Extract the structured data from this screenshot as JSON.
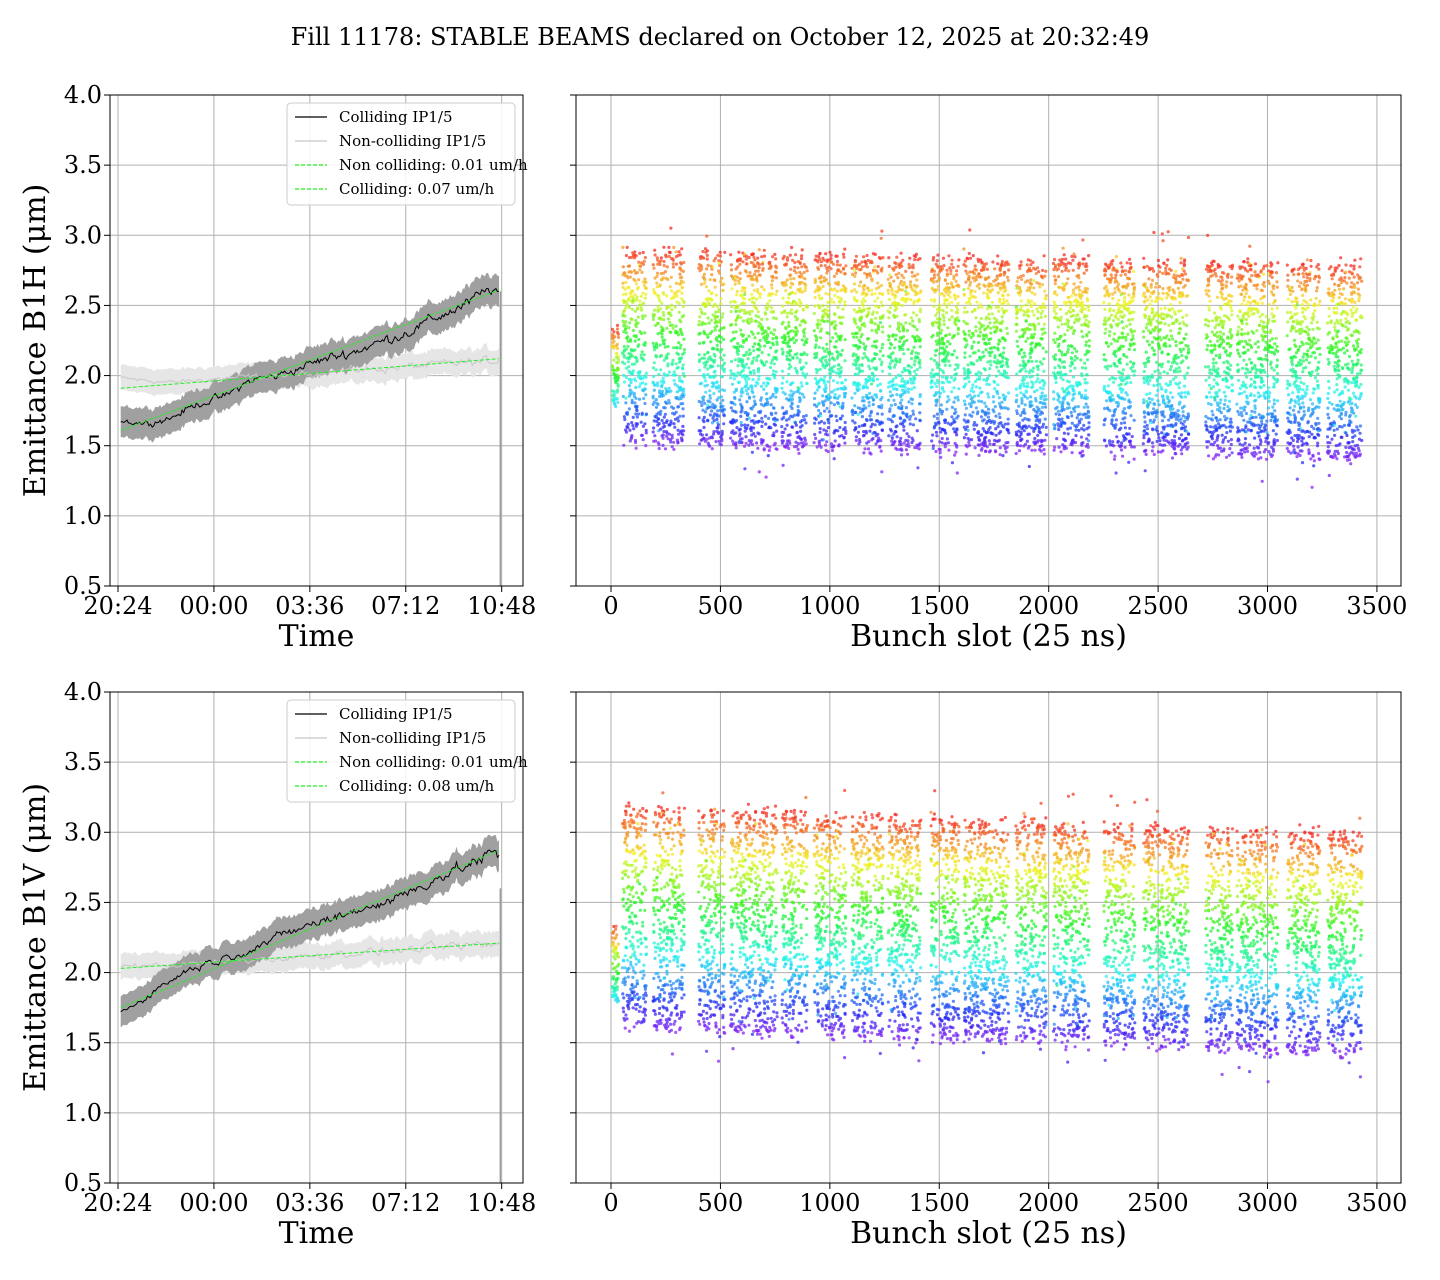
{
  "figure": {
    "title": "Fill 11178: STABLE BEAMS declared on October 12, 2025 at 20:32:49"
  },
  "colors": {
    "colliding": "#000000",
    "noncolliding": "#c8c8c8",
    "fit": "#22ee22",
    "band_colliding": "#a0a0a0",
    "band_noncolliding": "#e6e6e6",
    "grid": "#b0b0b0"
  },
  "chart_data": [
    {
      "type": "line",
      "panel": "B1H time evolution",
      "xlabel": "Time",
      "ylabel": "Emittance B1H (μm)",
      "ylim": [
        0.5,
        4.0
      ],
      "yticks": [
        "0.5",
        "1.0",
        "1.5",
        "2.0",
        "2.5",
        "3.0",
        "3.5",
        "4.0"
      ],
      "xlim_hours": [
        -0.3,
        15.2
      ],
      "xticks": [
        "20:24",
        "00:00",
        "03:36",
        "07:12",
        "10:48"
      ],
      "grid": true,
      "legend_position": "top-right",
      "legend": [
        "Colliding IP1/5",
        "Non-colliding IP1/5",
        "Non colliding: 0.01 um/h",
        "Colliding: 0.07 um/h"
      ],
      "series": [
        {
          "name": "Colliding IP1/5",
          "x_hours": [
            0.1,
            1,
            2,
            3,
            4,
            5,
            6,
            7,
            8,
            9,
            10,
            11,
            12,
            13,
            14,
            14.3
          ],
          "y": [
            1.68,
            1.66,
            1.7,
            1.8,
            1.85,
            1.97,
            2.0,
            2.07,
            2.13,
            2.18,
            2.25,
            2.32,
            2.42,
            2.5,
            2.62,
            2.6
          ]
        },
        {
          "name": "Non-colliding IP1/5",
          "x_hours": [
            0.1,
            2,
            4,
            6,
            8,
            10,
            12,
            14,
            14.3
          ],
          "y": [
            1.98,
            1.95,
            1.98,
            2.0,
            2.03,
            2.05,
            2.08,
            2.1,
            2.12
          ]
        },
        {
          "name": "Non colliding: 0.01 um/h",
          "x_hours": [
            0.1,
            14.3
          ],
          "y": [
            1.91,
            2.12
          ]
        },
        {
          "name": "Colliding: 0.07 um/h",
          "x_hours": [
            0.1,
            14.3
          ],
          "y": [
            1.61,
            2.61
          ]
        }
      ]
    },
    {
      "type": "scatter",
      "panel": "B1H bunch-by-bunch",
      "xlabel": "Bunch slot (25 ns)",
      "xlim": [
        -160,
        3610
      ],
      "ylim": [
        0.5,
        4.0
      ],
      "xticks": [
        "0",
        "500",
        "1000",
        "1500",
        "2000",
        "2500",
        "3000",
        "3500"
      ],
      "grid": true,
      "trains_start_slot": [
        52,
        192,
        400,
        546,
        780,
        928,
        1100,
        1266,
        1462,
        1612,
        1850,
        2022,
        2252,
        2432,
        2716,
        2860,
        3090,
        3274
      ],
      "trains_end_slot": [
        162,
        336,
        520,
        760,
        898,
        1074,
        1244,
        1416,
        1590,
        1818,
        1990,
        2186,
        2394,
        2640,
        2840,
        3048,
        3240,
        3432
      ],
      "y_range_at_start": [
        1.5,
        2.9
      ],
      "y_range_at_end": [
        1.4,
        2.8
      ]
    },
    {
      "type": "line",
      "panel": "B1V time evolution",
      "xlabel": "Time",
      "ylabel": "Emittance B1V (μm)",
      "ylim": [
        0.5,
        4.0
      ],
      "yticks": [
        "0.5",
        "1.0",
        "1.5",
        "2.0",
        "2.5",
        "3.0",
        "3.5",
        "4.0"
      ],
      "xlim_hours": [
        -0.3,
        15.2
      ],
      "xticks": [
        "20:24",
        "00:00",
        "03:36",
        "07:12",
        "10:48"
      ],
      "grid": true,
      "legend_position": "top-right",
      "legend": [
        "Colliding IP1/5",
        "Non-colliding IP1/5",
        "Non colliding: 0.01 um/h",
        "Colliding: 0.08 um/h"
      ],
      "series": [
        {
          "name": "Colliding IP1/5",
          "x_hours": [
            0.1,
            1,
            2,
            3,
            4,
            5,
            6,
            7,
            8,
            9,
            10,
            11,
            12,
            13,
            14,
            14.3
          ],
          "y": [
            1.72,
            1.82,
            1.95,
            2.05,
            2.1,
            2.17,
            2.25,
            2.33,
            2.38,
            2.45,
            2.5,
            2.58,
            2.68,
            2.75,
            2.85,
            2.82
          ]
        },
        {
          "name": "Non-colliding IP1/5",
          "x_hours": [
            0.1,
            2,
            4,
            6,
            8,
            10,
            12,
            14,
            14.3
          ],
          "y": [
            2.05,
            2.05,
            2.08,
            2.1,
            2.13,
            2.15,
            2.18,
            2.2,
            2.2
          ]
        },
        {
          "name": "Non colliding: 0.01 um/h",
          "x_hours": [
            0.1,
            14.3
          ],
          "y": [
            2.03,
            2.21
          ]
        },
        {
          "name": "Colliding: 0.08 um/h",
          "x_hours": [
            0.1,
            14.3
          ],
          "y": [
            1.75,
            2.87
          ]
        }
      ]
    },
    {
      "type": "scatter",
      "panel": "B1V bunch-by-bunch",
      "xlabel": "Bunch slot (25 ns)",
      "xlim": [
        -160,
        3610
      ],
      "ylim": [
        0.5,
        4.0
      ],
      "xticks": [
        "0",
        "500",
        "1000",
        "1500",
        "2000",
        "2500",
        "3000",
        "3500"
      ],
      "grid": true,
      "trains_start_slot": [
        52,
        192,
        400,
        546,
        780,
        928,
        1100,
        1266,
        1462,
        1612,
        1850,
        2022,
        2252,
        2432,
        2716,
        2860,
        3090,
        3274
      ],
      "trains_end_slot": [
        162,
        336,
        520,
        760,
        898,
        1074,
        1244,
        1416,
        1590,
        1818,
        1990,
        2186,
        2394,
        2640,
        2840,
        3048,
        3240,
        3432
      ],
      "y_range_at_start": [
        1.6,
        3.2
      ],
      "y_range_at_end": [
        1.4,
        3.0
      ]
    }
  ]
}
